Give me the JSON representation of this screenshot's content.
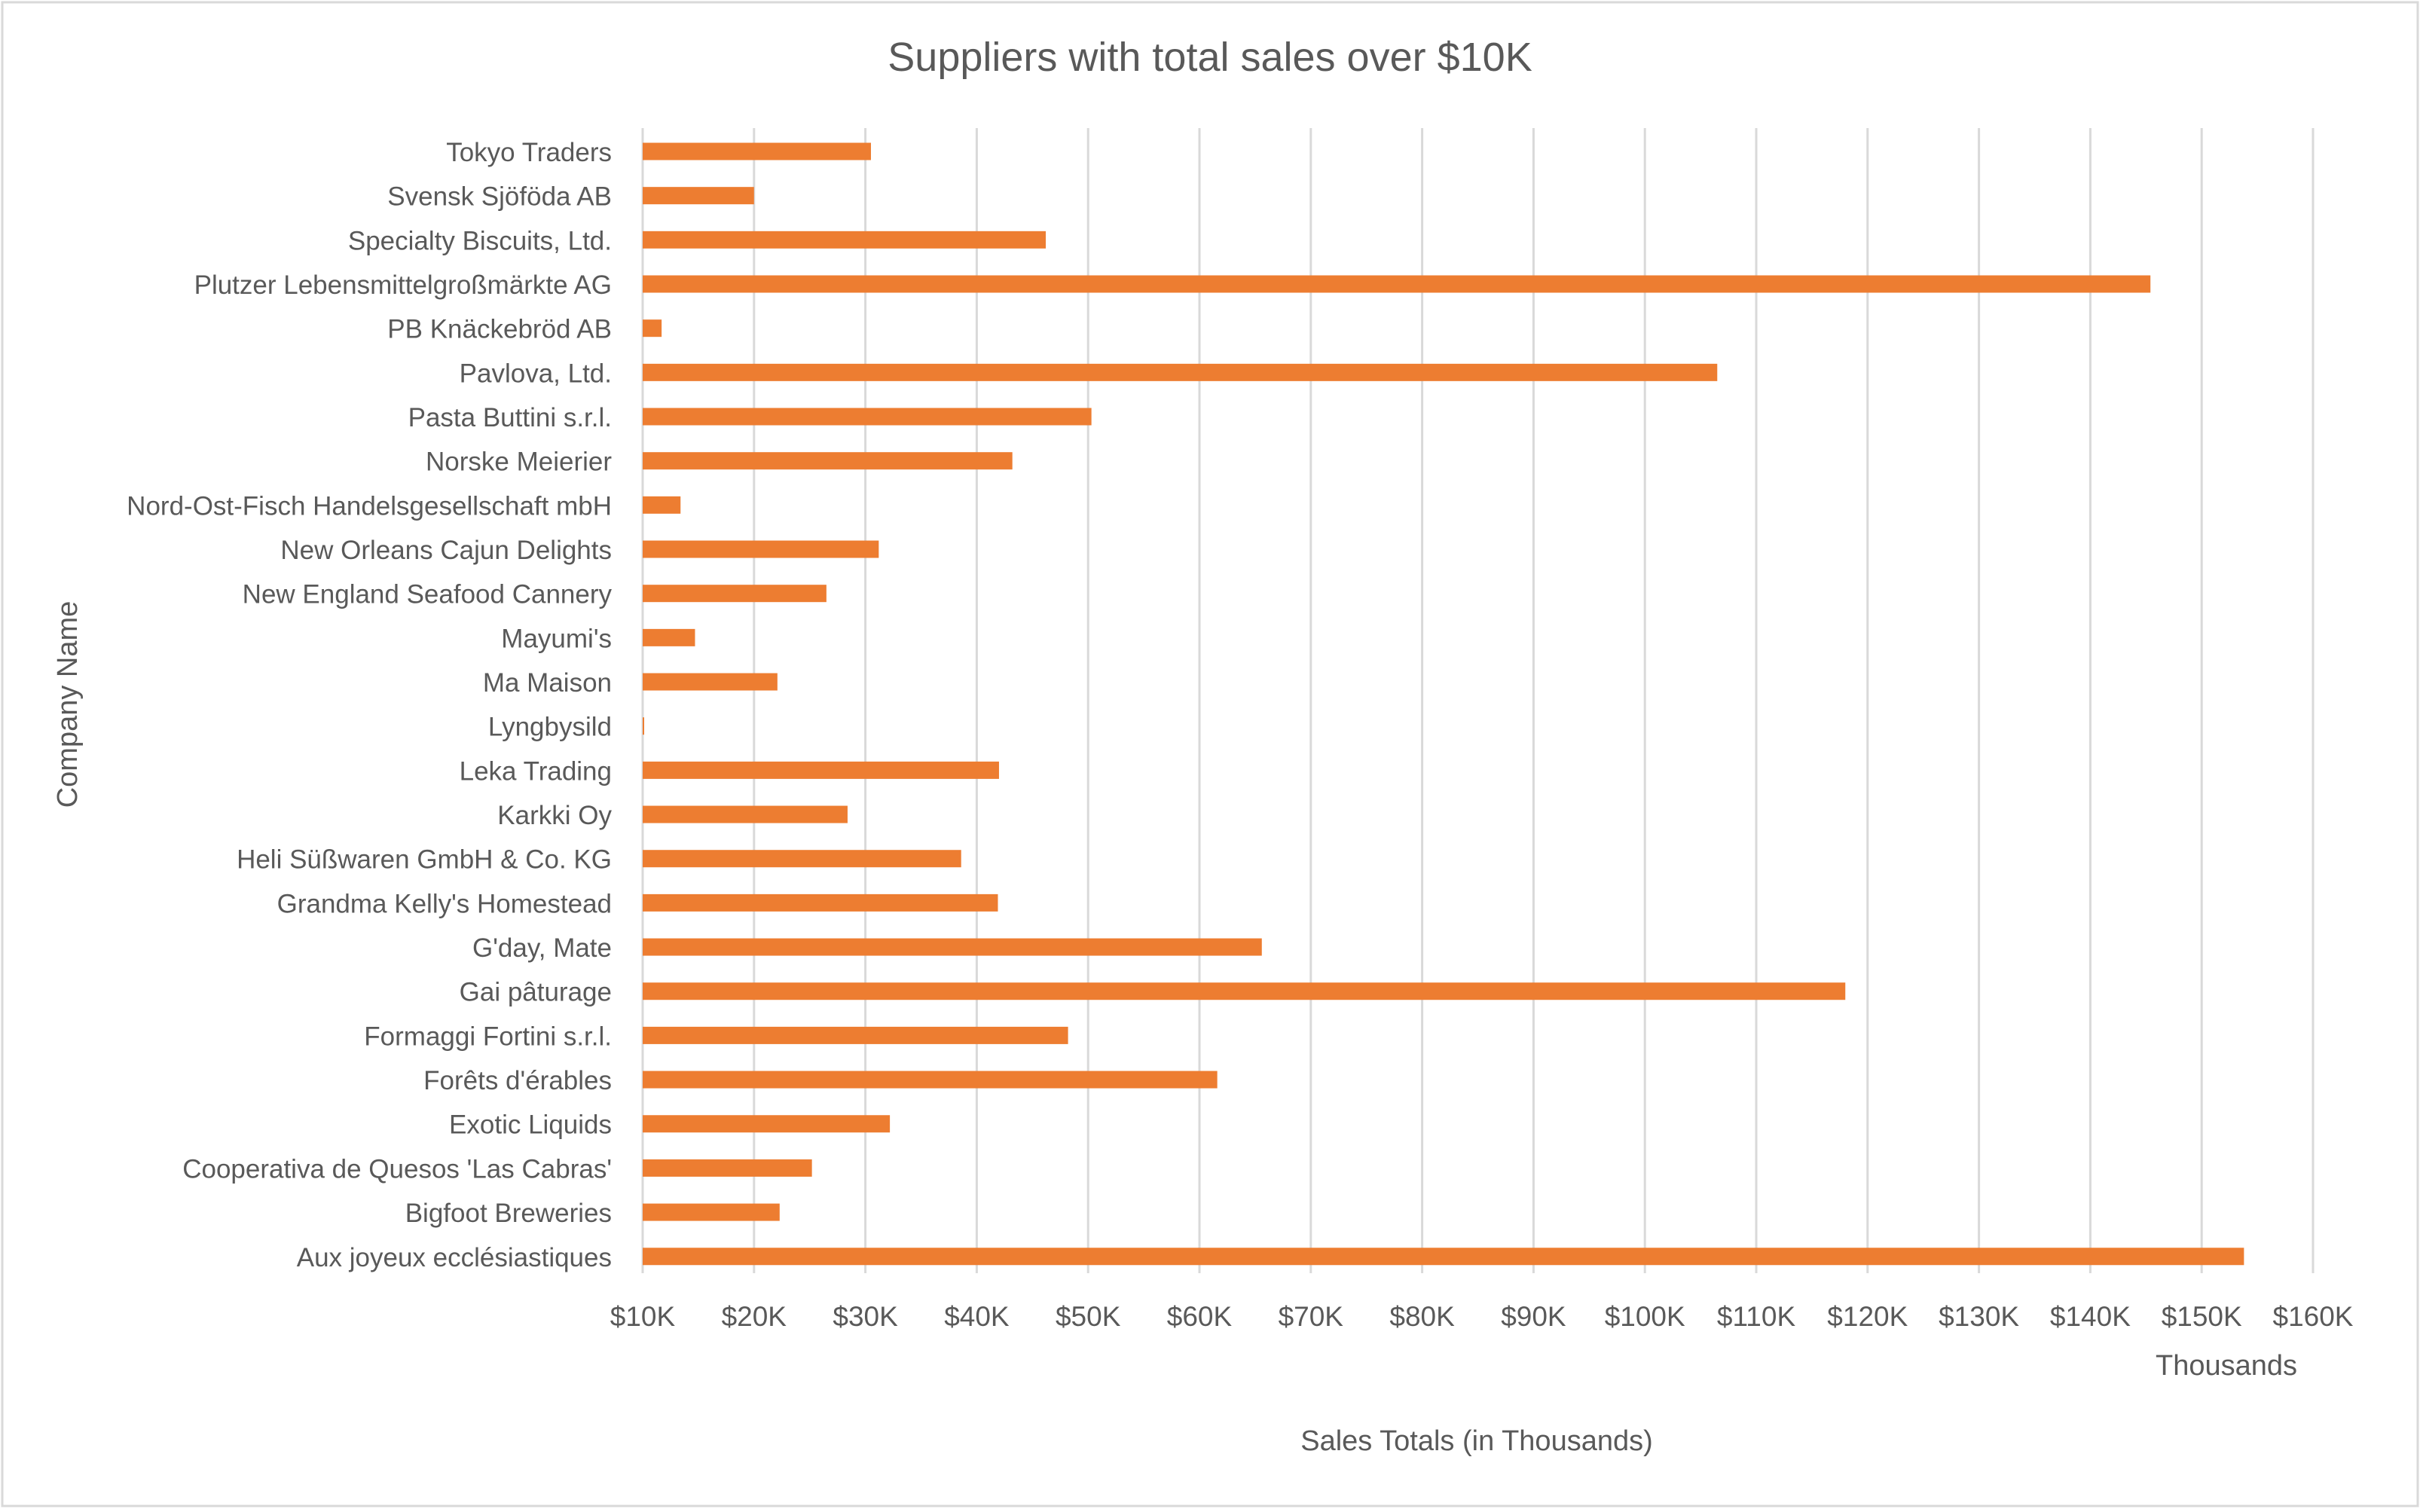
{
  "chart_data": {
    "type": "bar",
    "orientation": "horizontal",
    "title": "Suppliers with total sales over $10K",
    "xlabel": "Sales Totals (in Thousands)",
    "ylabel": "Company Name",
    "display_units_label": "Thousands",
    "categories": [
      "Tokyo Traders",
      "Svensk Sjöföda AB",
      "Specialty Biscuits, Ltd.",
      "Plutzer Lebensmittelgroßmärkte AG",
      "PB Knäckebröd AB",
      "Pavlova, Ltd.",
      "Pasta Buttini s.r.l.",
      "Norske Meierier",
      "Nord-Ost-Fisch Handelsgesellschaft mbH",
      "New Orleans Cajun Delights",
      "New England Seafood Cannery",
      "Mayumi's",
      "Ma Maison",
      "Lyngbysild",
      "Leka Trading",
      "Karkki Oy",
      "Heli Süßwaren GmbH & Co. KG",
      "Grandma Kelly's Homestead",
      "G'day, Mate",
      "Gai pâturage",
      "Formaggi Fortini s.r.l.",
      "Forêts d'érables",
      "Exotic Liquids",
      "Cooperativa de Quesos 'Las Cabras'",
      "Bigfoot Breweries",
      "Aux joyeux ecclésiastiques"
    ],
    "values": [
      30.5,
      20.0,
      46.2,
      145.4,
      11.7,
      106.5,
      50.3,
      43.2,
      13.4,
      31.2,
      26.5,
      14.7,
      22.1,
      10.1,
      42.0,
      28.4,
      38.6,
      41.9,
      65.6,
      118.0,
      48.2,
      61.6,
      32.2,
      25.2,
      22.3,
      153.8
    ],
    "xlim": [
      10,
      160
    ],
    "x_ticks": [
      10,
      20,
      30,
      40,
      50,
      60,
      70,
      80,
      90,
      100,
      110,
      120,
      130,
      140,
      150,
      160
    ],
    "x_tick_labels": [
      "$10K",
      "$20K",
      "$30K",
      "$40K",
      "$50K",
      "$60K",
      "$70K",
      "$80K",
      "$90K",
      "$100K",
      "$110K",
      "$120K",
      "$130K",
      "$140K",
      "$150K",
      "$160K"
    ],
    "grid": true,
    "legend": "none",
    "colors": {
      "bar": "#ED7D31",
      "grid": "#D9D9D9",
      "text": "#595959",
      "frame": "#D9D9D9"
    }
  }
}
